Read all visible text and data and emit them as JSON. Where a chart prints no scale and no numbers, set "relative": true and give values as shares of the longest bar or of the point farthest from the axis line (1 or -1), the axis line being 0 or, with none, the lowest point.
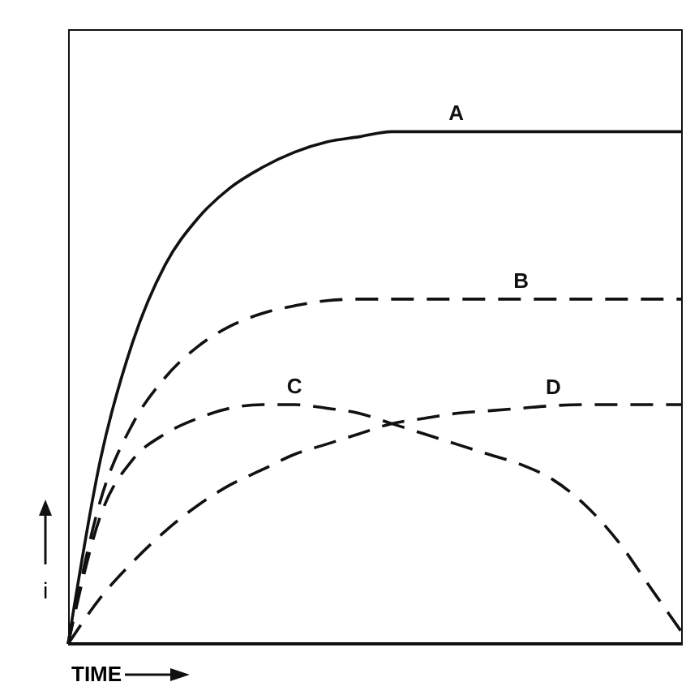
{
  "chart_data": {
    "type": "line",
    "relative": true,
    "xlabel": "TIME",
    "ylabel": "i",
    "marker": "none",
    "categories": [
      null,
      null,
      null,
      null,
      null,
      null,
      null,
      null,
      null,
      null,
      null,
      null,
      null,
      null,
      null,
      null,
      null,
      null,
      null,
      null
    ],
    "series": [
      {
        "name": "A",
        "color": "#111111",
        "line_style": "solid",
        "values": [
          0,
          0.36,
          0.59,
          0.74,
          0.83,
          0.89,
          0.93,
          0.96,
          0.98,
          0.99,
          1,
          1,
          1,
          1,
          1,
          1,
          1,
          1,
          1,
          1
        ]
      },
      {
        "name": "B",
        "color": "#111111",
        "line_style": "dashed",
        "values": [
          0,
          0.28,
          0.43,
          0.52,
          0.58,
          0.62,
          0.645,
          0.66,
          0.67,
          0.673,
          0.673,
          0.673,
          0.673,
          0.673,
          0.673,
          0.673,
          0.673,
          0.673,
          0.673,
          0.673
        ]
      },
      {
        "name": "C",
        "color": "#111111",
        "line_style": "dashed",
        "values": [
          0,
          0.25,
          0.36,
          0.41,
          0.44,
          0.46,
          0.467,
          0.467,
          0.46,
          0.45,
          0.43,
          0.41,
          0.39,
          0.37,
          0.35,
          0.32,
          0.27,
          0.2,
          0.11,
          0.02
        ]
      },
      {
        "name": "D",
        "color": "#111111",
        "line_style": "dashed",
        "values": [
          0,
          0.09,
          0.16,
          0.22,
          0.27,
          0.31,
          0.34,
          0.37,
          0.39,
          0.41,
          0.43,
          0.44,
          0.45,
          0.455,
          0.46,
          0.465,
          0.467,
          0.467,
          0.467,
          0.467
        ]
      }
    ]
  }
}
